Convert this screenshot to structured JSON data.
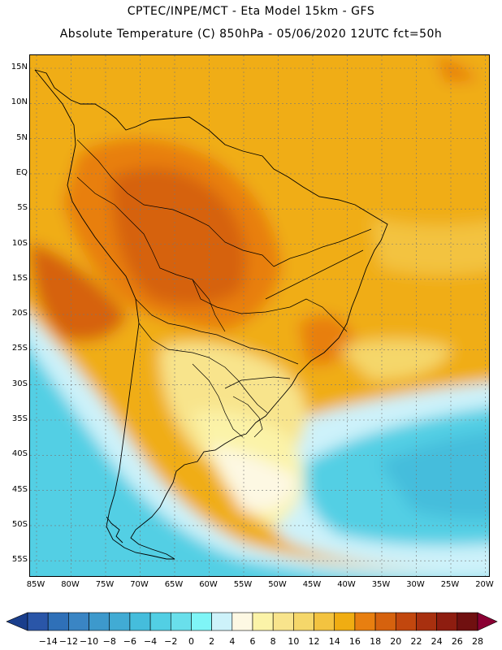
{
  "header": {
    "line1": "CPTEC/INPE/MCT -   Eta Model 15km - GFS",
    "line2": "Absolute Temperature (C) 850hPa - 05/06/2020 12UTC fct=50h"
  },
  "map": {
    "lat_labels": [
      "15N",
      "10N",
      "5N",
      "EQ",
      "5S",
      "10S",
      "15S",
      "20S",
      "25S",
      "30S",
      "35S",
      "40S",
      "45S",
      "50S",
      "55S"
    ],
    "lon_labels": [
      "85W",
      "80W",
      "75W",
      "70W",
      "65W",
      "60W",
      "55W",
      "50W",
      "45W",
      "40W",
      "35W",
      "30W",
      "25W",
      "20W"
    ]
  },
  "colorbar": {
    "labels": [
      "-14",
      "-12",
      "-10",
      "-8",
      "-6",
      "-4",
      "-2",
      "0",
      "2",
      "4",
      "6",
      "8",
      "10",
      "12",
      "14",
      "16",
      "18",
      "20",
      "22",
      "24",
      "26",
      "28"
    ],
    "colors": [
      "#1a3e8c",
      "#2a56a8",
      "#2f70b8",
      "#3a85c4",
      "#3d99cc",
      "#41abd4",
      "#45bddc",
      "#52cfe4",
      "#69dfeb",
      "#7ff5f7",
      "#cdf2fa",
      "#fdf8e3",
      "#fbf3a8",
      "#f8e48c",
      "#f5d76a",
      "#f3c340",
      "#f0ad12",
      "#e87f10",
      "#d6620e",
      "#c2470e",
      "#a8300f",
      "#8e1d10",
      "#701010",
      "#8a0033"
    ]
  }
}
